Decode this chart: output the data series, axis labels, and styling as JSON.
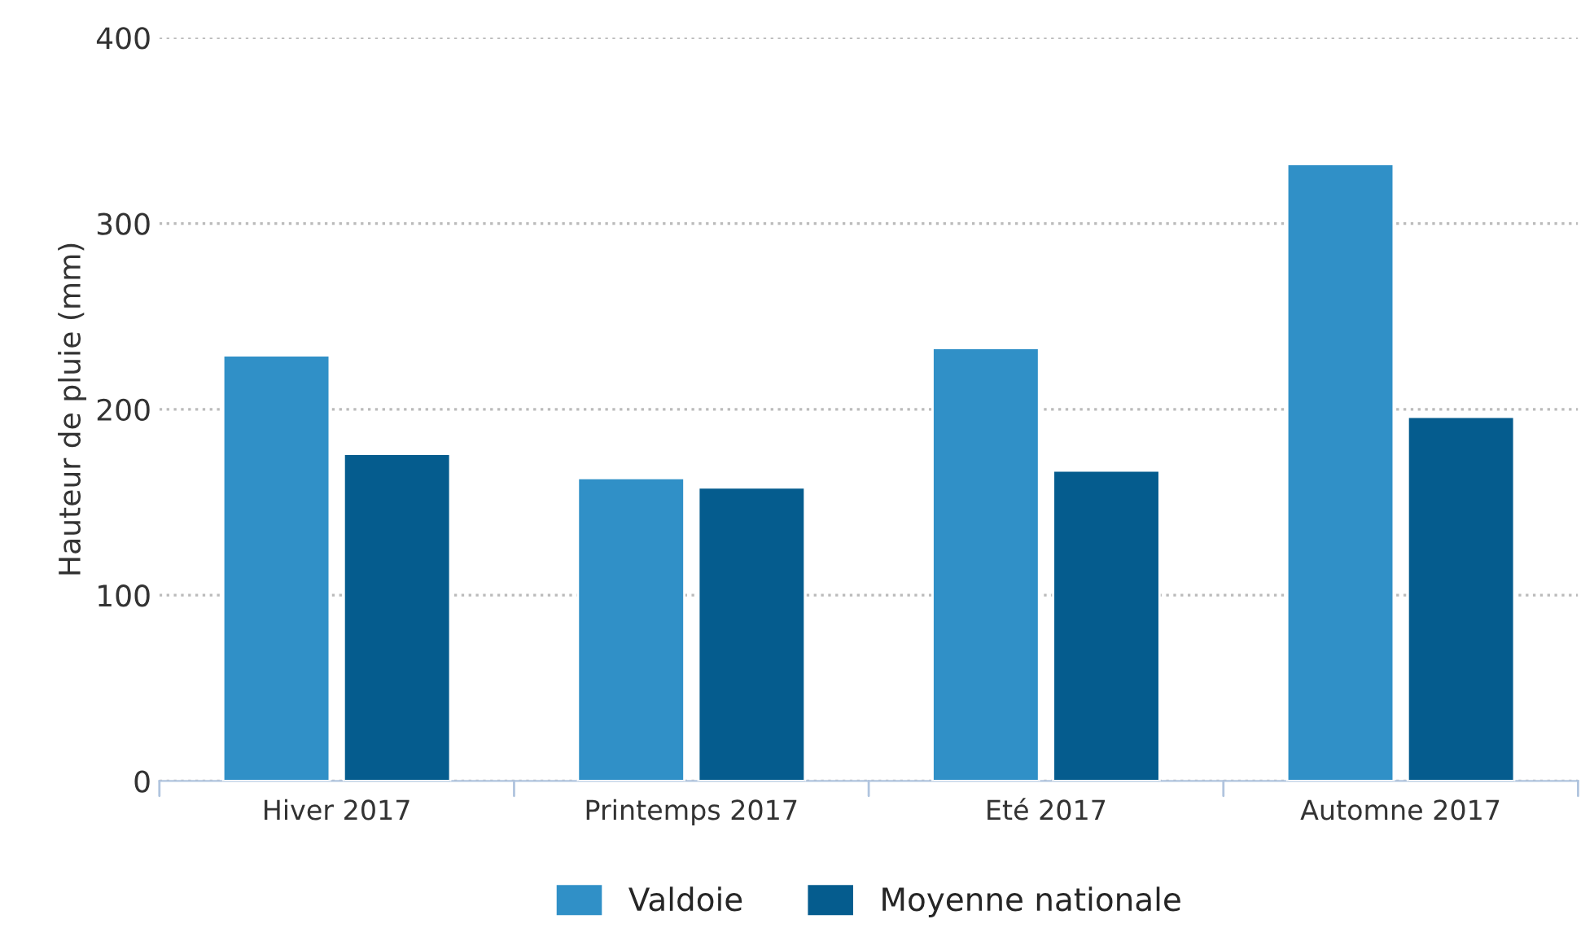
{
  "chart_data": {
    "type": "bar",
    "ylabel": "Hauteur de pluie (mm)",
    "categories": [
      "Hiver 2017",
      "Printemps 2017",
      "Eté 2017",
      "Automne 2017"
    ],
    "series": [
      {
        "name": "Valdoie",
        "color": "#3090c7",
        "values": [
          229,
          163,
          233,
          332
        ]
      },
      {
        "name": "Moyenne nationale",
        "color": "#055c8e",
        "values": [
          176,
          158,
          167,
          196
        ]
      }
    ],
    "ylim": [
      0,
      400
    ],
    "yticks": [
      0,
      100,
      200,
      300,
      400
    ],
    "grid": "y",
    "legend": "bottom"
  }
}
